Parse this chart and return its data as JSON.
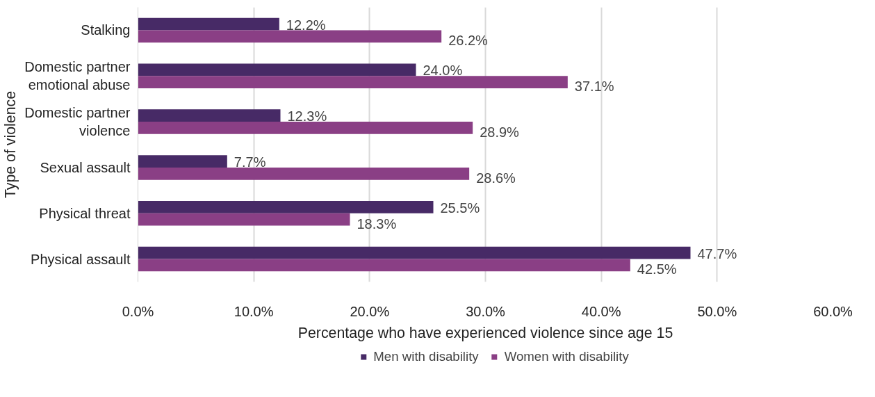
{
  "chart_data": {
    "type": "bar",
    "orientation": "horizontal",
    "xlabel": "Percentage who have experienced violence since age 15",
    "ylabel": "Type of violence",
    "categories": [
      "Stalking",
      "Domestic partner emotional abuse",
      "Domestic partner violence",
      "Sexual assault",
      "Physical threat",
      "Physical assault"
    ],
    "series": [
      {
        "name": "Men with disability",
        "color": "#472a66",
        "values": [
          12.2,
          24.0,
          12.3,
          7.7,
          25.5,
          47.7
        ],
        "value_labels": [
          "12.2%",
          "24.0%",
          "12.3%",
          "7.7%",
          "25.5%",
          "47.7%"
        ]
      },
      {
        "name": "Women with disability",
        "color": "#8a3f85",
        "values": [
          26.2,
          37.1,
          28.9,
          28.6,
          18.3,
          42.5
        ],
        "value_labels": [
          "26.2%",
          "37.1%",
          "28.9%",
          "28.6%",
          "18.3%",
          "42.5%"
        ]
      }
    ],
    "xlim": [
      0,
      60
    ],
    "xticks": [
      {
        "value": 0,
        "label": "0.0%"
      },
      {
        "value": 10,
        "label": "10.0%"
      },
      {
        "value": 20,
        "label": "20.0%"
      },
      {
        "value": 30,
        "label": "30.0%"
      },
      {
        "value": 40,
        "label": "40.0%"
      },
      {
        "value": 50,
        "label": "50.0%"
      },
      {
        "value": 60,
        "label": "60.0%"
      }
    ],
    "grid": "x",
    "legend": "bottom"
  }
}
